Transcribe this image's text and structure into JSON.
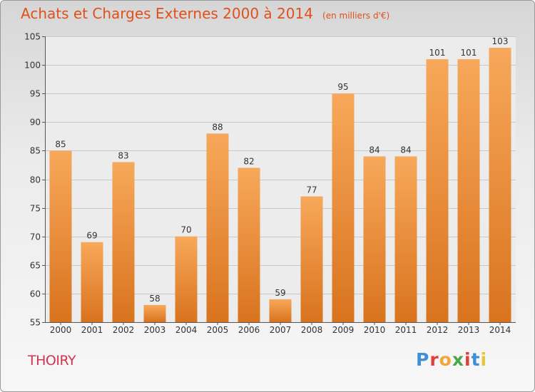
{
  "header": {
    "title": "Achats et Charges Externes 2000 à 2014",
    "unit": "(en milliers d'€)"
  },
  "place": "THOIRY",
  "brand": {
    "letters": [
      "P",
      "r",
      "o",
      "x",
      "i",
      "t",
      "i"
    ],
    "colors": [
      "#3e8fd6",
      "#e23d3d",
      "#f1a63a",
      "#4aa84a",
      "#e23d3d",
      "#3e8fd6",
      "#e7c43a"
    ]
  },
  "chart_data": {
    "type": "bar",
    "title": "Achats et Charges Externes 2000 à 2014",
    "subtitle": "(en milliers d'€)",
    "categories": [
      "2000",
      "2001",
      "2002",
      "2003",
      "2004",
      "2005",
      "2006",
      "2007",
      "2008",
      "2009",
      "2010",
      "2011",
      "2012",
      "2013",
      "2014"
    ],
    "values": [
      85,
      69,
      83,
      58,
      70,
      88,
      82,
      59,
      77,
      95,
      84,
      84,
      101,
      101,
      103
    ],
    "ylim": [
      55,
      105
    ],
    "yticks": [
      55,
      60,
      65,
      70,
      75,
      80,
      85,
      90,
      95,
      100,
      105
    ],
    "grid": true,
    "bar_color_top": "#f7a85a",
    "bar_color_bottom": "#d9731e",
    "grid_color": "#c8c8c8"
  }
}
